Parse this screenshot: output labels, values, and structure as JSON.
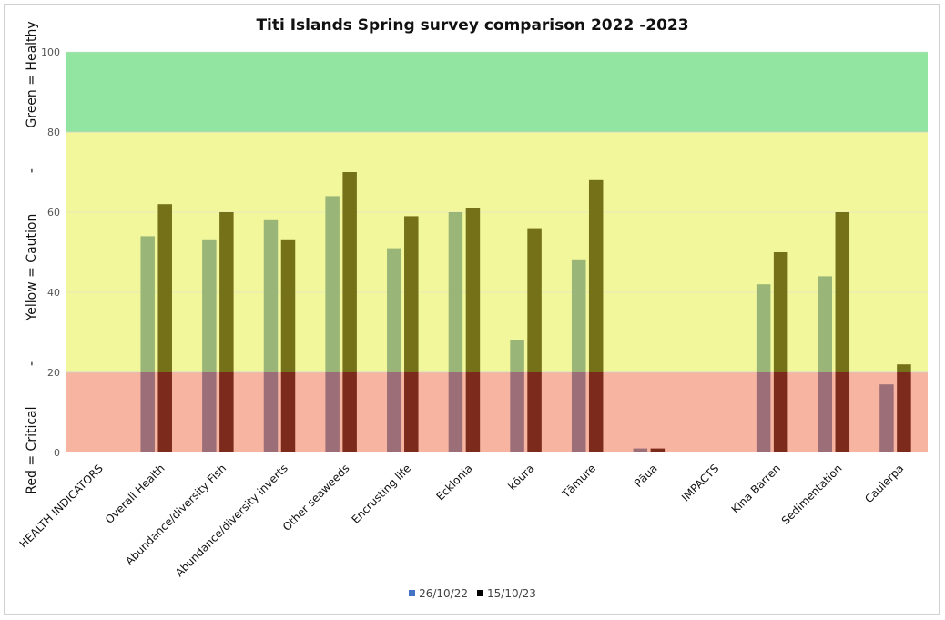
{
  "chart_data": {
    "type": "bar",
    "title": "Titi Islands Spring survey comparison 2022 -2023",
    "ylabel": "Red = Critical          -          Yellow = Caution          -          Green = Healthy",
    "xlabel": "",
    "ylim": [
      0,
      100
    ],
    "yticks": [
      0,
      20,
      40,
      60,
      80,
      100
    ],
    "bands": [
      {
        "from": 0,
        "to": 20,
        "color": "#f7b4a0",
        "meaning": "Critical"
      },
      {
        "from": 20,
        "to": 80,
        "color": "#f2f79b",
        "meaning": "Caution"
      },
      {
        "from": 80,
        "to": 100,
        "color": "#92e5a0",
        "meaning": "Healthy"
      }
    ],
    "categories": [
      "HEALTH INDICATORS",
      "Overall Health",
      "Abundance/diversity Fish",
      "Abundance/diversity inverts",
      "Other seaweeds",
      "Encrusting life",
      "Ecklonia",
      "kōura",
      "Tāmure",
      "Pāua",
      "IMPACTS",
      "Kina Barren",
      "Sedimentation",
      "Caulerpa"
    ],
    "series": [
      {
        "name": "26/10/22",
        "legend_color": "#4472c4",
        "values": [
          null,
          54,
          53,
          58,
          64,
          51,
          60,
          28,
          48,
          1,
          null,
          42,
          44,
          17
        ]
      },
      {
        "name": "15/10/23",
        "legend_color": "#000000",
        "values": [
          null,
          62,
          60,
          53,
          70,
          59,
          61,
          56,
          68,
          1,
          null,
          50,
          60,
          22
        ]
      }
    ],
    "legend_position": "bottom",
    "grid": true
  }
}
